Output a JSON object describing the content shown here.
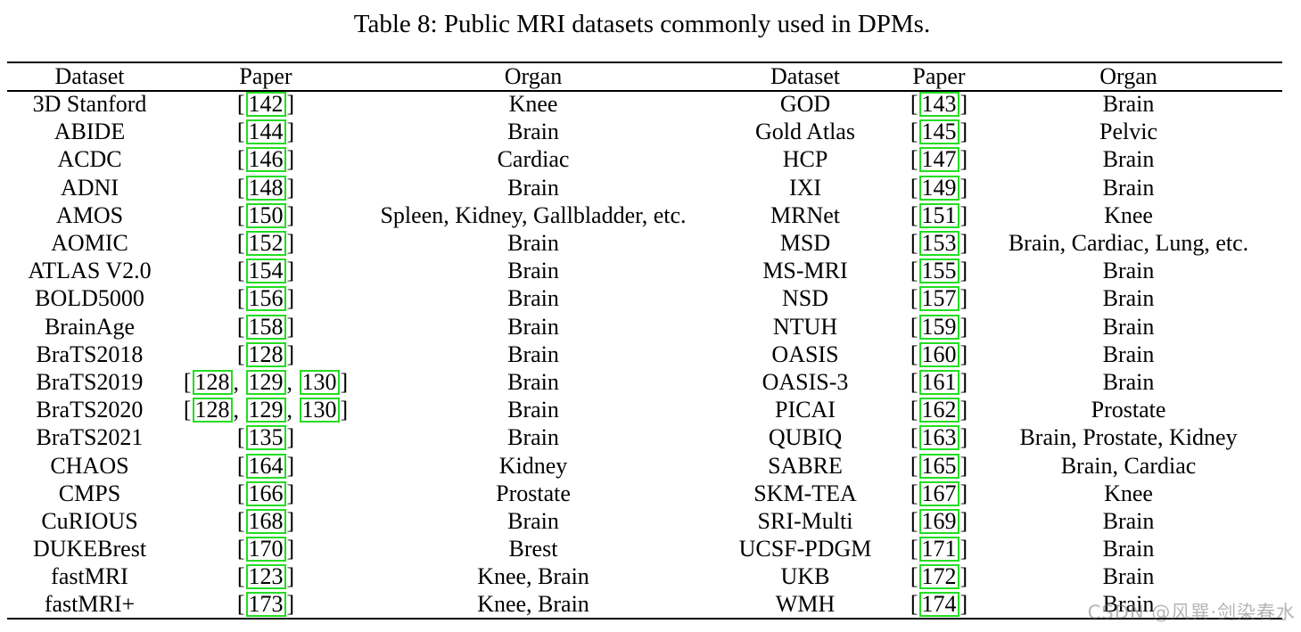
{
  "caption": "Table 8: Public MRI datasets commonly used in DPMs.",
  "headers": [
    "Dataset",
    "Paper",
    "Organ",
    "Dataset",
    "Paper",
    "Organ"
  ],
  "cite_border_color": "#22dd22",
  "rows": [
    {
      "d1": "3D Stanford",
      "p1": [
        "142"
      ],
      "o1": "Knee",
      "d2": "GOD",
      "p2": [
        "143"
      ],
      "o2": "Brain"
    },
    {
      "d1": "ABIDE",
      "p1": [
        "144"
      ],
      "o1": "Brain",
      "d2": "Gold Atlas",
      "p2": [
        "145"
      ],
      "o2": "Pelvic"
    },
    {
      "d1": "ACDC",
      "p1": [
        "146"
      ],
      "o1": "Cardiac",
      "d2": "HCP",
      "p2": [
        "147"
      ],
      "o2": "Brain"
    },
    {
      "d1": "ADNI",
      "p1": [
        "148"
      ],
      "o1": "Brain",
      "d2": "IXI",
      "p2": [
        "149"
      ],
      "o2": "Brain"
    },
    {
      "d1": "AMOS",
      "p1": [
        "150"
      ],
      "o1": "Spleen, Kidney, Gallbladder, etc.",
      "d2": "MRNet",
      "p2": [
        "151"
      ],
      "o2": "Knee"
    },
    {
      "d1": "AOMIC",
      "p1": [
        "152"
      ],
      "o1": "Brain",
      "d2": "MSD",
      "p2": [
        "153"
      ],
      "o2": "Brain, Cardiac, Lung, etc."
    },
    {
      "d1": "ATLAS V2.0",
      "p1": [
        "154"
      ],
      "o1": "Brain",
      "d2": "MS-MRI",
      "p2": [
        "155"
      ],
      "o2": "Brain"
    },
    {
      "d1": "BOLD5000",
      "p1": [
        "156"
      ],
      "o1": "Brain",
      "d2": "NSD",
      "p2": [
        "157"
      ],
      "o2": "Brain"
    },
    {
      "d1": "BrainAge",
      "p1": [
        "158"
      ],
      "o1": "Brain",
      "d2": "NTUH",
      "p2": [
        "159"
      ],
      "o2": "Brain"
    },
    {
      "d1": "BraTS2018",
      "p1": [
        "128"
      ],
      "o1": "Brain",
      "d2": "OASIS",
      "p2": [
        "160"
      ],
      "o2": "Brain"
    },
    {
      "d1": "BraTS2019",
      "p1": [
        "128",
        "129",
        "130"
      ],
      "o1": "Brain",
      "d2": "OASIS-3",
      "p2": [
        "161"
      ],
      "o2": "Brain"
    },
    {
      "d1": "BraTS2020",
      "p1": [
        "128",
        "129",
        "130"
      ],
      "o1": "Brain",
      "d2": "PICAI",
      "p2": [
        "162"
      ],
      "o2": "Prostate"
    },
    {
      "d1": "BraTS2021",
      "p1": [
        "135"
      ],
      "o1": "Brain",
      "d2": "QUBIQ",
      "p2": [
        "163"
      ],
      "o2": "Brain, Prostate, Kidney"
    },
    {
      "d1": "CHAOS",
      "p1": [
        "164"
      ],
      "o1": "Kidney",
      "d2": "SABRE",
      "p2": [
        "165"
      ],
      "o2": "Brain, Cardiac"
    },
    {
      "d1": "CMPS",
      "p1": [
        "166"
      ],
      "o1": "Prostate",
      "d2": "SKM-TEA",
      "p2": [
        "167"
      ],
      "o2": "Knee"
    },
    {
      "d1": "CuRIOUS",
      "p1": [
        "168"
      ],
      "o1": "Brain",
      "d2": "SRI-Multi",
      "p2": [
        "169"
      ],
      "o2": "Brain"
    },
    {
      "d1": "DUKEBrest",
      "p1": [
        "170"
      ],
      "o1": "Brest",
      "d2": "UCSF-PDGM",
      "p2": [
        "171"
      ],
      "o2": "Brain"
    },
    {
      "d1": "fastMRI",
      "p1": [
        "123"
      ],
      "o1": "Knee, Brain",
      "d2": "UKB",
      "p2": [
        "172"
      ],
      "o2": "Brain"
    },
    {
      "d1": "fastMRI+",
      "p1": [
        "173"
      ],
      "o1": "Knee, Brain",
      "d2": "WMH",
      "p2": [
        "174"
      ],
      "o2": "Brain"
    }
  ],
  "watermark": "CSDN @风巽·剑染春水"
}
